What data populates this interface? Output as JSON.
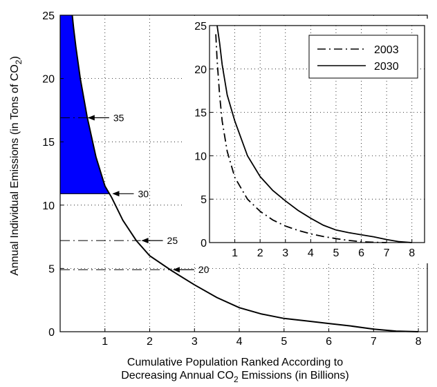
{
  "chart_data": [
    {
      "type": "area",
      "title": "",
      "xlabel_line1": "Cumulative Population Ranked According to",
      "xlabel_line2_a": "Decreasing Annual CO",
      "xlabel_line2_sub": "2",
      "xlabel_line2_b": " Emissions (in Billions)",
      "ylabel_a": "Annual Individual Emissions (in Tons of CO",
      "ylabel_sub": "2",
      "ylabel_b": ")",
      "xlim": [
        0,
        8.2
      ],
      "ylim": [
        0,
        25
      ],
      "xticks": [
        "1",
        "2",
        "3",
        "4",
        "5",
        "6",
        "7",
        "8"
      ],
      "yticks": [
        "0",
        "5",
        "10",
        "15",
        "20",
        "25"
      ],
      "grid": "dotted",
      "curve_2030": {
        "x": [
          0.27,
          0.3,
          0.35,
          0.45,
          0.6,
          0.8,
          1.0,
          1.15,
          1.4,
          1.7,
          2.0,
          2.5,
          3.0,
          3.5,
          4.0,
          4.5,
          5.0,
          5.5,
          6.0,
          6.5,
          7.0,
          7.5,
          8.0
        ],
        "y": [
          25,
          24.0,
          22.5,
          20.0,
          17.0,
          13.8,
          11.5,
          10.6,
          8.8,
          7.2,
          6.0,
          4.8,
          3.7,
          2.7,
          1.9,
          1.4,
          1.05,
          0.85,
          0.65,
          0.45,
          0.2,
          0.05,
          0.0
        ]
      },
      "shaded_region": {
        "y_threshold": 10.9,
        "color": "#0000ff"
      },
      "annotations": [
        {
          "label": "35",
          "x": 0.6,
          "y": 16.9,
          "line_from_x": 0.0
        },
        {
          "label": "30",
          "x": 1.15,
          "y": 10.9,
          "line_from_x": 0.0
        },
        {
          "label": "25",
          "x": 1.8,
          "y": 7.2,
          "line_from_x": 0.0
        },
        {
          "label": "20",
          "x": 2.5,
          "y": 4.9,
          "line_from_x": 0.0
        }
      ]
    },
    {
      "type": "line",
      "title": "",
      "xlim": [
        0,
        8.5
      ],
      "ylim": [
        0,
        25
      ],
      "xticks": [
        "1",
        "2",
        "3",
        "4",
        "5",
        "6",
        "7",
        "8"
      ],
      "yticks": [
        "0",
        "5",
        "10",
        "15",
        "20",
        "25"
      ],
      "grid": "dotted",
      "legend": "top-right",
      "series": [
        {
          "name": "2003",
          "style": "dash-dot",
          "x": [
            0.25,
            0.3,
            0.4,
            0.5,
            0.7,
            1.0,
            1.5,
            2.0,
            2.5,
            3.0,
            3.5,
            4.0,
            4.5,
            5.0,
            5.5,
            6.0,
            6.5,
            7.0
          ],
          "y": [
            24.0,
            21.0,
            17.0,
            14.0,
            10.5,
            7.5,
            5.0,
            3.6,
            2.6,
            1.9,
            1.4,
            1.0,
            0.7,
            0.45,
            0.25,
            0.1,
            0.03,
            0.0
          ]
        },
        {
          "name": "2030",
          "style": "solid",
          "x": [
            0.3,
            0.4,
            0.5,
            0.7,
            1.0,
            1.5,
            2.0,
            2.5,
            3.0,
            3.5,
            4.0,
            4.5,
            5.0,
            5.5,
            6.0,
            6.5,
            7.0,
            7.5,
            8.0
          ],
          "y": [
            25.0,
            23.0,
            20.5,
            17.0,
            14.0,
            10.0,
            7.6,
            6.0,
            4.8,
            3.7,
            2.8,
            2.0,
            1.45,
            1.15,
            0.9,
            0.65,
            0.35,
            0.1,
            0.0
          ]
        }
      ]
    }
  ]
}
